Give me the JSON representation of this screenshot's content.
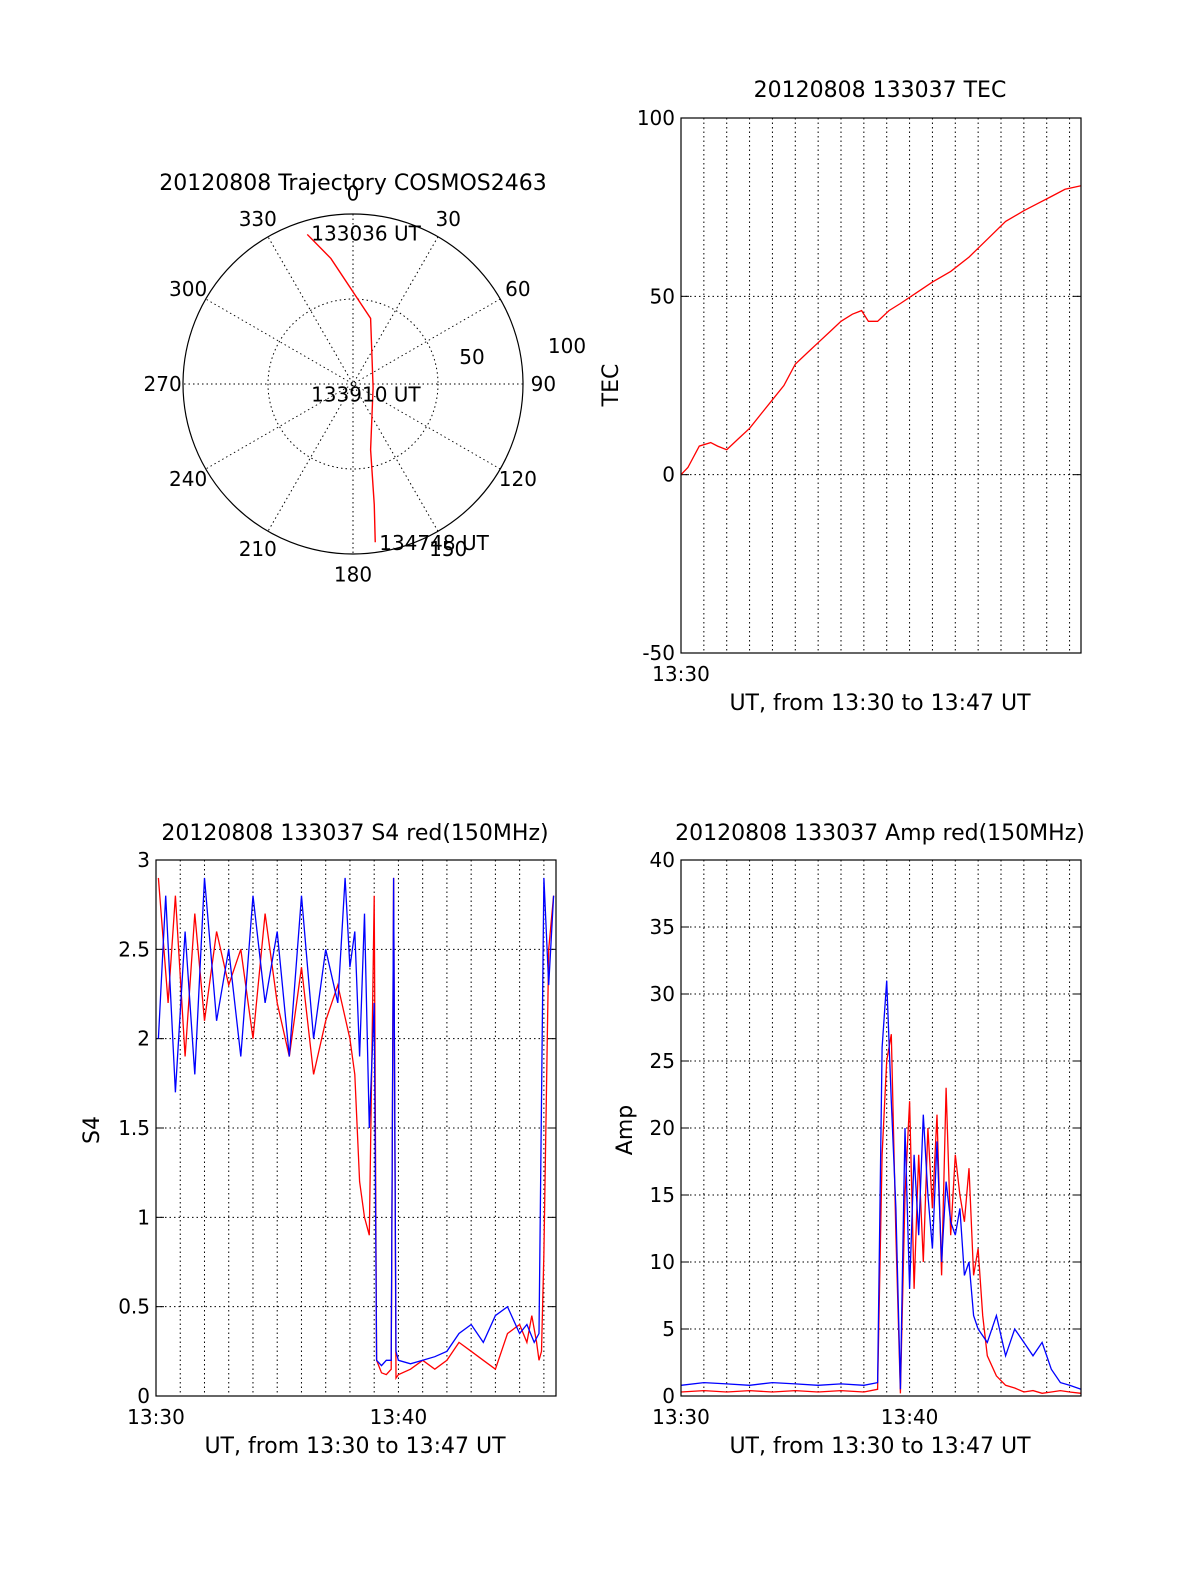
{
  "chart_data": [
    {
      "type": "polar",
      "title": "20120808 Trajectory COSMOS2463",
      "azimuth_labels": [
        "0",
        "30",
        "60",
        "90",
        "120",
        "150",
        "180",
        "210",
        "240",
        "270",
        "300",
        "330"
      ],
      "radial_labels": [
        "50",
        "100"
      ],
      "radial_range": [
        0,
        100
      ],
      "grid": true,
      "series": [
        {
          "color": "#ff0000",
          "points": [
            [
              343,
              92
            ],
            [
              350,
              75
            ],
            [
              15,
              40
            ],
            [
              100,
              12
            ],
            [
              165,
              40
            ],
            [
              170,
              72
            ],
            [
              172,
              94
            ]
          ]
        }
      ],
      "annotations": [
        {
          "text": "133036 UT",
          "az": 343,
          "r": 92
        },
        {
          "text": "133910 UT",
          "az": 100,
          "r": 12
        },
        {
          "text": "134748 UT",
          "az": 172,
          "r": 94
        }
      ]
    },
    {
      "type": "line",
      "title": "20120808 133037 TEC",
      "xlabel": "UT, from 13:30 to 13:47 UT",
      "ylabel": "TEC",
      "xlim": [
        0,
        17.5
      ],
      "ylim": [
        -50,
        100
      ],
      "yticks": [
        "-50",
        "0",
        "50",
        "100"
      ],
      "xtick_labels": [
        {
          "x": 0,
          "label": "13:30"
        }
      ],
      "grid": true,
      "series": [
        {
          "color": "#ff0000",
          "x": [
            0,
            0.3,
            0.8,
            1.3,
            1.6,
            2.0,
            2.5,
            3.0,
            3.5,
            4.0,
            4.5,
            5.0,
            5.5,
            6.0,
            6.5,
            7.0,
            7.5,
            7.9,
            8.2,
            8.6,
            9.1,
            9.6,
            10.3,
            11.0,
            11.8,
            12.6,
            13.4,
            14.2,
            15.0,
            15.6,
            16.2,
            16.8,
            17.5
          ],
          "y": [
            0,
            2,
            8,
            9,
            8,
            7,
            10,
            13,
            17,
            21,
            25,
            31,
            34,
            37,
            40,
            43,
            45,
            46,
            43,
            43,
            46,
            48,
            51,
            54,
            57,
            61,
            66,
            71,
            74,
            76,
            78,
            80,
            81
          ]
        }
      ]
    },
    {
      "type": "line",
      "title": "20120808 133037 S4 red(150MHz)",
      "xlabel": "UT, from 13:30 to 13:47 UT",
      "ylabel": "S4",
      "xlim": [
        0,
        16.5
      ],
      "ylim": [
        0,
        3
      ],
      "yticks": [
        "0",
        "0.5",
        "1",
        "1.5",
        "2",
        "2.5",
        "3"
      ],
      "xtick_labels": [
        {
          "x": 0,
          "label": "13:30"
        },
        {
          "x": 10,
          "label": "13:40"
        }
      ],
      "grid": true,
      "series": [
        {
          "color": "#ff0000",
          "x": [
            0.1,
            0.5,
            0.8,
            1.2,
            1.6,
            2.0,
            2.5,
            3.0,
            3.5,
            4.0,
            4.5,
            5.0,
            5.5,
            6.0,
            6.5,
            7.0,
            7.5,
            8.0,
            8.2,
            8.4,
            8.6,
            8.8,
            9.0,
            9.1,
            9.3,
            9.5,
            9.7,
            9.8,
            9.9,
            10.0,
            10.5,
            11.0,
            11.5,
            12.0,
            12.5,
            13.0,
            13.5,
            14.0,
            14.5,
            15.0,
            15.3,
            15.5,
            15.7,
            15.8,
            15.9,
            16.0,
            16.2,
            16.4
          ],
          "y": [
            2.9,
            2.2,
            2.8,
            1.9,
            2.7,
            2.1,
            2.6,
            2.3,
            2.5,
            2.0,
            2.7,
            2.2,
            1.9,
            2.4,
            1.8,
            2.1,
            2.3,
            2.0,
            1.8,
            1.2,
            1.0,
            0.9,
            2.8,
            0.2,
            0.13,
            0.12,
            0.15,
            2.9,
            0.1,
            0.12,
            0.15,
            0.2,
            0.15,
            0.2,
            0.3,
            0.25,
            0.2,
            0.15,
            0.35,
            0.4,
            0.3,
            0.45,
            0.3,
            0.2,
            0.25,
            0.8,
            2.5,
            2.8
          ]
        },
        {
          "color": "#0000ff",
          "x": [
            0.1,
            0.4,
            0.8,
            1.2,
            1.6,
            2.0,
            2.5,
            3.0,
            3.5,
            4.0,
            4.5,
            5.0,
            5.5,
            6.0,
            6.5,
            7.0,
            7.5,
            7.8,
            8.0,
            8.2,
            8.4,
            8.6,
            8.8,
            9.0,
            9.1,
            9.3,
            9.5,
            9.7,
            9.8,
            9.9,
            10.0,
            10.5,
            11.0,
            11.5,
            12.0,
            12.5,
            13.0,
            13.5,
            14.0,
            14.5,
            15.0,
            15.3,
            15.6,
            15.8,
            16.0,
            16.2,
            16.4
          ],
          "y": [
            2.0,
            2.8,
            1.7,
            2.6,
            1.8,
            2.9,
            2.1,
            2.5,
            1.9,
            2.8,
            2.2,
            2.6,
            1.9,
            2.8,
            2.0,
            2.5,
            2.2,
            2.9,
            2.4,
            2.6,
            1.9,
            2.7,
            1.5,
            2.2,
            0.2,
            0.17,
            0.2,
            0.2,
            2.9,
            0.25,
            0.2,
            0.18,
            0.2,
            0.22,
            0.25,
            0.35,
            0.4,
            0.3,
            0.45,
            0.5,
            0.35,
            0.4,
            0.3,
            0.35,
            2.9,
            2.3,
            2.8
          ]
        }
      ]
    },
    {
      "type": "line",
      "title": "20120808 133037 Amp red(150MHz)",
      "xlabel": "UT, from 13:30 to 13:47 UT",
      "ylabel": "Amp",
      "xlim": [
        0,
        17.5
      ],
      "ylim": [
        0,
        40
      ],
      "yticks": [
        "0",
        "5",
        "10",
        "15",
        "20",
        "25",
        "30",
        "35",
        "40"
      ],
      "xtick_labels": [
        {
          "x": 0,
          "label": "13:30"
        },
        {
          "x": 10,
          "label": "13:40"
        }
      ],
      "grid": true,
      "series": [
        {
          "color": "#ff0000",
          "x": [
            0,
            1,
            2,
            3,
            4,
            5,
            6,
            7,
            8,
            8.6,
            8.8,
            9.0,
            9.2,
            9.4,
            9.6,
            9.8,
            10.0,
            10.2,
            10.4,
            10.6,
            10.8,
            11.0,
            11.2,
            11.4,
            11.6,
            11.8,
            12.0,
            12.2,
            12.4,
            12.6,
            12.8,
            13.0,
            13.2,
            13.4,
            13.8,
            14.2,
            14.6,
            15.0,
            15.4,
            15.8,
            16.2,
            16.6,
            17.0,
            17.5
          ],
          "y": [
            0.3,
            0.4,
            0.3,
            0.4,
            0.3,
            0.4,
            0.3,
            0.4,
            0.3,
            0.5,
            18,
            25,
            27,
            12,
            0.2,
            15,
            22,
            8,
            18,
            10,
            20,
            14,
            21,
            9,
            23,
            12,
            18,
            15,
            13,
            17,
            9,
            11,
            6,
            3,
            1.5,
            0.8,
            0.6,
            0.3,
            0.4,
            0.2,
            0.3,
            0.4,
            0.3,
            0.2
          ]
        },
        {
          "color": "#0000ff",
          "x": [
            0,
            1,
            2,
            3,
            4,
            5,
            6,
            7,
            8,
            8.6,
            8.8,
            9.0,
            9.2,
            9.4,
            9.6,
            9.8,
            10.0,
            10.2,
            10.4,
            10.6,
            10.8,
            11.0,
            11.2,
            11.4,
            11.6,
            11.8,
            12.0,
            12.2,
            12.4,
            12.6,
            12.8,
            13.0,
            13.4,
            13.8,
            14.2,
            14.6,
            15.0,
            15.4,
            15.8,
            16.2,
            16.6,
            17.0,
            17.5
          ],
          "y": [
            0.8,
            1.0,
            0.9,
            0.8,
            1.0,
            0.9,
            0.8,
            0.9,
            0.8,
            1.0,
            26,
            31,
            22,
            14,
            0.5,
            20,
            8,
            18,
            12,
            21,
            15,
            11,
            19,
            10,
            16,
            13,
            12,
            14,
            9,
            10,
            6,
            5,
            4,
            6,
            3,
            5,
            4,
            3,
            4,
            2,
            1,
            0.8,
            0.5
          ]
        }
      ]
    }
  ]
}
